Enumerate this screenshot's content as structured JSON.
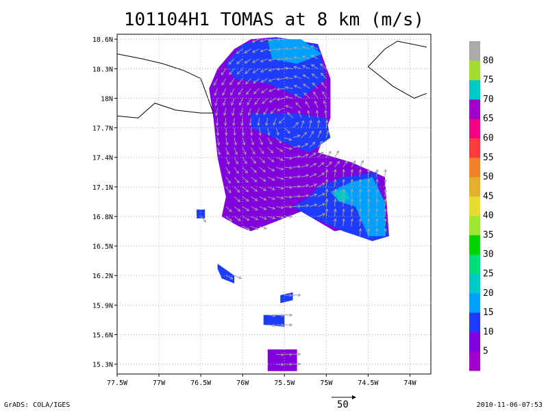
{
  "title": "101104H1 TOMAS at 8 km (m/s)",
  "credit": "GrADS: COLA/IGES",
  "timestamp": "2010-11-06-07:53",
  "reference_vector_label": "50",
  "chart_data": {
    "type": "heatmap",
    "xlim": [
      -77.5,
      -73.75
    ],
    "ylim": [
      15.2,
      18.65
    ],
    "x_ticks": [
      -77.5,
      -77,
      -76.5,
      -76,
      -75.5,
      -75,
      -74.5,
      -74
    ],
    "x_tick_labels": [
      "77.5W",
      "77W",
      "76.5W",
      "76W",
      "75.5W",
      "75W",
      "74.5W",
      "74W"
    ],
    "y_ticks": [
      15.3,
      15.6,
      15.9,
      16.2,
      16.5,
      16.8,
      17.1,
      17.4,
      17.7,
      18.0,
      18.3,
      18.6
    ],
    "y_tick_labels": [
      "15.3N",
      "15.6N",
      "15.9N",
      "16.2N",
      "16.5N",
      "16.8N",
      "17.1N",
      "17.4N",
      "17.7N",
      "18N",
      "18.3N",
      "18.6N"
    ],
    "grid": true,
    "colorbar": {
      "labels": [
        "5",
        "10",
        "15",
        "20",
        "25",
        "30",
        "35",
        "40",
        "45",
        "50",
        "55",
        "60",
        "65",
        "70",
        "75",
        "80"
      ],
      "colors": [
        "#a000c8",
        "#8200dc",
        "#1e3cff",
        "#00a0ff",
        "#00c8c8",
        "#00dc78",
        "#00d200",
        "#a0e632",
        "#e6dc32",
        "#e6af2d",
        "#f08228",
        "#fa3c3c",
        "#f00082",
        "#a000c8",
        "#00c8c8",
        "#a0dc32",
        "#aaaaaa"
      ]
    },
    "regions": [
      {
        "name": "storm-main-body",
        "level_color": "#8200dc",
        "polygon": [
          [
            -76.1,
            18.5
          ],
          [
            -75.9,
            18.6
          ],
          [
            -75.6,
            18.62
          ],
          [
            -75.1,
            18.55
          ],
          [
            -74.95,
            18.2
          ],
          [
            -74.95,
            17.8
          ],
          [
            -75.1,
            17.45
          ],
          [
            -74.7,
            17.35
          ],
          [
            -74.3,
            17.2
          ],
          [
            -74.25,
            16.6
          ],
          [
            -74.45,
            16.55
          ],
          [
            -74.6,
            16.7
          ],
          [
            -74.9,
            16.65
          ],
          [
            -75.3,
            16.85
          ],
          [
            -75.6,
            16.75
          ],
          [
            -75.9,
            16.65
          ],
          [
            -76.05,
            16.7
          ],
          [
            -76.25,
            16.8
          ],
          [
            -76.2,
            17.0
          ],
          [
            -76.3,
            17.4
          ],
          [
            -76.35,
            17.8
          ],
          [
            -76.4,
            18.1
          ],
          [
            -76.3,
            18.3
          ]
        ]
      },
      {
        "name": "storm-north-band-15",
        "level_color": "#1e3cff",
        "polygon": [
          [
            -76.0,
            18.55
          ],
          [
            -75.6,
            18.62
          ],
          [
            -75.1,
            18.55
          ],
          [
            -75.0,
            18.2
          ],
          [
            -75.3,
            18.0
          ],
          [
            -75.7,
            18.15
          ],
          [
            -76.1,
            18.2
          ],
          [
            -76.2,
            18.35
          ]
        ]
      },
      {
        "name": "storm-north-band-20",
        "level_color": "#00a0ff",
        "polygon": [
          [
            -75.7,
            18.6
          ],
          [
            -75.3,
            18.6
          ],
          [
            -75.05,
            18.45
          ],
          [
            -75.35,
            18.35
          ],
          [
            -75.65,
            18.4
          ]
        ]
      },
      {
        "name": "storm-mid-band-15",
        "level_color": "#1e3cff",
        "polygon": [
          [
            -75.9,
            17.85
          ],
          [
            -75.4,
            17.85
          ],
          [
            -75.0,
            17.8
          ],
          [
            -74.95,
            17.6
          ],
          [
            -75.2,
            17.45
          ],
          [
            -75.5,
            17.55
          ],
          [
            -75.9,
            17.7
          ]
        ]
      },
      {
        "name": "storm-east-arm-15",
        "level_color": "#1e3cff",
        "polygon": [
          [
            -75.1,
            17.1
          ],
          [
            -74.8,
            17.2
          ],
          [
            -74.4,
            17.25
          ],
          [
            -74.25,
            16.6
          ],
          [
            -74.45,
            16.55
          ],
          [
            -74.8,
            16.65
          ],
          [
            -75.2,
            16.8
          ],
          [
            -75.4,
            16.9
          ],
          [
            -75.2,
            17.0
          ]
        ]
      },
      {
        "name": "storm-east-arm-20",
        "level_color": "#00a0ff",
        "polygon": [
          [
            -74.95,
            17.05
          ],
          [
            -74.7,
            17.15
          ],
          [
            -74.45,
            17.2
          ],
          [
            -74.3,
            16.95
          ],
          [
            -74.3,
            16.6
          ],
          [
            -74.5,
            16.6
          ],
          [
            -74.65,
            16.9
          ],
          [
            -74.85,
            16.95
          ]
        ]
      },
      {
        "name": "storm-east-arm-25",
        "level_color": "#00c8c8",
        "polygon": [
          [
            -74.9,
            17.05
          ],
          [
            -74.78,
            17.08
          ],
          [
            -74.72,
            16.98
          ],
          [
            -74.85,
            16.95
          ]
        ]
      },
      {
        "name": "storm-west-patch",
        "level_color": "#1e3cff",
        "polygon": [
          [
            -76.55,
            16.87
          ],
          [
            -76.45,
            16.87
          ],
          [
            -76.45,
            16.78
          ],
          [
            -76.55,
            16.78
          ]
        ]
      },
      {
        "name": "storm-south-patch-1",
        "level_color": "#1e3cff",
        "polygon": [
          [
            -76.3,
            16.32
          ],
          [
            -76.1,
            16.2
          ],
          [
            -76.1,
            16.12
          ],
          [
            -76.25,
            16.17
          ],
          [
            -76.3,
            16.27
          ]
        ]
      },
      {
        "name": "storm-south-patch-2",
        "level_color": "#1e3cff",
        "polygon": [
          [
            -75.55,
            16.0
          ],
          [
            -75.4,
            16.03
          ],
          [
            -75.4,
            15.95
          ],
          [
            -75.55,
            15.92
          ]
        ]
      },
      {
        "name": "storm-south-patch-3",
        "level_color": "#1e3cff",
        "polygon": [
          [
            -75.75,
            15.8
          ],
          [
            -75.5,
            15.8
          ],
          [
            -75.5,
            15.68
          ],
          [
            -75.75,
            15.7
          ]
        ]
      },
      {
        "name": "storm-south-patch-4",
        "level_color": "#8200dc",
        "polygon": [
          [
            -75.7,
            15.45
          ],
          [
            -75.35,
            15.45
          ],
          [
            -75.35,
            15.23
          ],
          [
            -75.7,
            15.23
          ]
        ]
      }
    ],
    "coastlines": [
      {
        "name": "jamaica-coast",
        "points": [
          [
            -77.5,
            18.45
          ],
          [
            -77.2,
            18.4
          ],
          [
            -76.95,
            18.35
          ],
          [
            -76.7,
            18.28
          ],
          [
            -76.5,
            18.2
          ],
          [
            -76.35,
            17.85
          ],
          [
            -76.5,
            17.85
          ],
          [
            -76.8,
            17.88
          ],
          [
            -77.05,
            17.95
          ],
          [
            -77.25,
            17.8
          ],
          [
            -77.5,
            17.82
          ]
        ]
      },
      {
        "name": "haiti-coast",
        "points": [
          [
            -74.5,
            18.32
          ],
          [
            -74.3,
            18.5
          ],
          [
            -74.15,
            18.58
          ],
          [
            -73.8,
            18.52
          ]
        ]
      },
      {
        "name": "haiti-south-coast",
        "points": [
          [
            -74.5,
            18.32
          ],
          [
            -74.2,
            18.12
          ],
          [
            -73.95,
            18.0
          ],
          [
            -73.8,
            18.05
          ]
        ]
      }
    ],
    "wind_vectors": {
      "unit": "m/s",
      "reference_magnitude": 50
    }
  }
}
